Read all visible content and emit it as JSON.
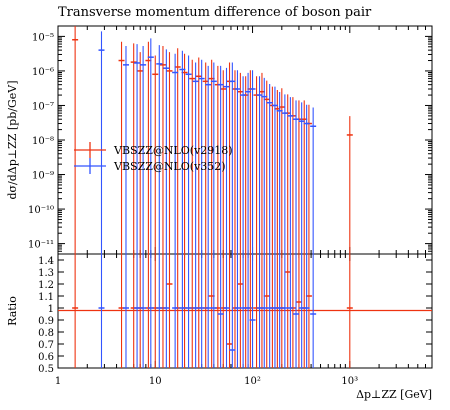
{
  "chart_data": {
    "type": "histogram",
    "title": "Transverse momentum difference of boson pair",
    "xlabel": "Δp⊥ZZ [GeV]",
    "ylabel": "dσ/dΔp⊥ZZ [pb/GeV]",
    "ratio_label": "Ratio",
    "x_scale": "log",
    "y_scale": "log",
    "xlim": [
      1,
      7000
    ],
    "ylim": [
      5e-12,
      2e-05
    ],
    "ratio_ylim": [
      0.5,
      1.45
    ],
    "x_tick_labels": [
      {
        "v": 1,
        "t": "1"
      },
      {
        "v": 10,
        "t": "10"
      },
      {
        "v": 100,
        "t": "10²"
      },
      {
        "v": 1000,
        "t": "10³"
      }
    ],
    "y_tick_labels": [
      {
        "v": 1e-05,
        "t": "10⁻⁵"
      },
      {
        "v": 1e-06,
        "t": "10⁻⁶"
      },
      {
        "v": 1e-07,
        "t": "10⁻⁷"
      },
      {
        "v": 1e-08,
        "t": "10⁻⁸"
      },
      {
        "v": 1e-09,
        "t": "10⁻⁹"
      },
      {
        "v": 1e-10,
        "t": "10⁻¹⁰"
      },
      {
        "v": 1e-11,
        "t": "10⁻¹¹"
      }
    ],
    "ratio_ticks": [
      "0.5",
      "0.6",
      "0.7",
      "0.8",
      "0.9",
      "1",
      "1.1",
      "1.2",
      "1.3",
      "1.4"
    ],
    "series": [
      {
        "name": "VBSZZ@NLO(v2918)",
        "color": "#ee3311",
        "points": [
          [
            1.5,
            8e-06
          ],
          [
            4.5,
            2e-06
          ],
          [
            6,
            1.8e-06
          ],
          [
            7,
            1e-06
          ],
          [
            8.5,
            2e-06
          ],
          [
            10,
            8e-07
          ],
          [
            12,
            1.5e-06
          ],
          [
            14,
            1e-06
          ],
          [
            17,
            1.3e-06
          ],
          [
            20,
            9e-07
          ],
          [
            24,
            6e-07
          ],
          [
            28,
            7e-07
          ],
          [
            33,
            5e-07
          ],
          [
            38,
            6e-07
          ],
          [
            44,
            4e-07
          ],
          [
            50,
            3e-07
          ],
          [
            58,
            5e-07
          ],
          [
            66,
            3e-07
          ],
          [
            75,
            2.5e-07
          ],
          [
            85,
            2e-07
          ],
          [
            95,
            3e-07
          ],
          [
            110,
            2e-07
          ],
          [
            125,
            2.5e-07
          ],
          [
            140,
            1.5e-07
          ],
          [
            160,
            1e-07
          ],
          [
            180,
            8e-08
          ],
          [
            200,
            9e-08
          ],
          [
            230,
            6e-08
          ],
          [
            260,
            5e-08
          ],
          [
            300,
            4e-08
          ],
          [
            340,
            4e-08
          ],
          [
            380,
            3e-08
          ],
          [
            1000,
            1.4e-08
          ]
        ],
        "ratio": [
          [
            1.5,
            1
          ],
          [
            4.5,
            1
          ],
          [
            6,
            1
          ],
          [
            7,
            1
          ],
          [
            8.5,
            1
          ],
          [
            10,
            1
          ],
          [
            12,
            1
          ],
          [
            14,
            1.2
          ],
          [
            17,
            1
          ],
          [
            20,
            1
          ],
          [
            24,
            1
          ],
          [
            28,
            1
          ],
          [
            33,
            1
          ],
          [
            38,
            1.1
          ],
          [
            44,
            1
          ],
          [
            50,
            1
          ],
          [
            58,
            0.7
          ],
          [
            66,
            1
          ],
          [
            75,
            1.2
          ],
          [
            85,
            1
          ],
          [
            95,
            1
          ],
          [
            110,
            1
          ],
          [
            125,
            1
          ],
          [
            140,
            1.1
          ],
          [
            160,
            1
          ],
          [
            180,
            1
          ],
          [
            200,
            1
          ],
          [
            230,
            1.3
          ],
          [
            260,
            1
          ],
          [
            300,
            1.05
          ],
          [
            340,
            1
          ],
          [
            380,
            1.1
          ],
          [
            1000,
            1
          ]
        ]
      },
      {
        "name": "VBSZZ@NLO(v352)",
        "color": "#3355ff",
        "points": [
          [
            2.8,
            4e-06
          ],
          [
            5,
            1.5e-06
          ],
          [
            6.5,
            1.7e-06
          ],
          [
            7.5,
            1.5e-06
          ],
          [
            9,
            2.5e-06
          ],
          [
            11,
            1.6e-06
          ],
          [
            13,
            1.2e-06
          ],
          [
            16,
            9e-07
          ],
          [
            19,
            1.1e-06
          ],
          [
            22,
            8e-07
          ],
          [
            26,
            5e-07
          ],
          [
            30,
            6e-07
          ],
          [
            35,
            4e-07
          ],
          [
            40,
            5e-07
          ],
          [
            47,
            4e-07
          ],
          [
            54,
            3.5e-07
          ],
          [
            62,
            5e-07
          ],
          [
            70,
            3e-07
          ],
          [
            80,
            2e-07
          ],
          [
            90,
            2.5e-07
          ],
          [
            100,
            3e-07
          ],
          [
            118,
            2e-07
          ],
          [
            132,
            1.8e-07
          ],
          [
            150,
            1.2e-07
          ],
          [
            170,
            1e-07
          ],
          [
            190,
            7e-08
          ],
          [
            215,
            6e-08
          ],
          [
            245,
            5e-08
          ],
          [
            280,
            4e-08
          ],
          [
            320,
            3.5e-08
          ],
          [
            360,
            3e-08
          ],
          [
            420,
            2.5e-08
          ]
        ],
        "ratio": [
          [
            2.8,
            1
          ],
          [
            5,
            1
          ],
          [
            6.5,
            1
          ],
          [
            7.5,
            1
          ],
          [
            9,
            1
          ],
          [
            11,
            1
          ],
          [
            13,
            1
          ],
          [
            16,
            1
          ],
          [
            19,
            1
          ],
          [
            22,
            1
          ],
          [
            26,
            1
          ],
          [
            30,
            1
          ],
          [
            35,
            1
          ],
          [
            40,
            1
          ],
          [
            47,
            0.95
          ],
          [
            54,
            1
          ],
          [
            62,
            0.65
          ],
          [
            70,
            1
          ],
          [
            80,
            1
          ],
          [
            90,
            1
          ],
          [
            100,
            0.9
          ],
          [
            118,
            1
          ],
          [
            132,
            1
          ],
          [
            150,
            1
          ],
          [
            170,
            1
          ],
          [
            190,
            1
          ],
          [
            215,
            1
          ],
          [
            245,
            1
          ],
          [
            280,
            0.95
          ],
          [
            320,
            1
          ],
          [
            360,
            1
          ],
          [
            420,
            0.95
          ]
        ]
      }
    ]
  }
}
